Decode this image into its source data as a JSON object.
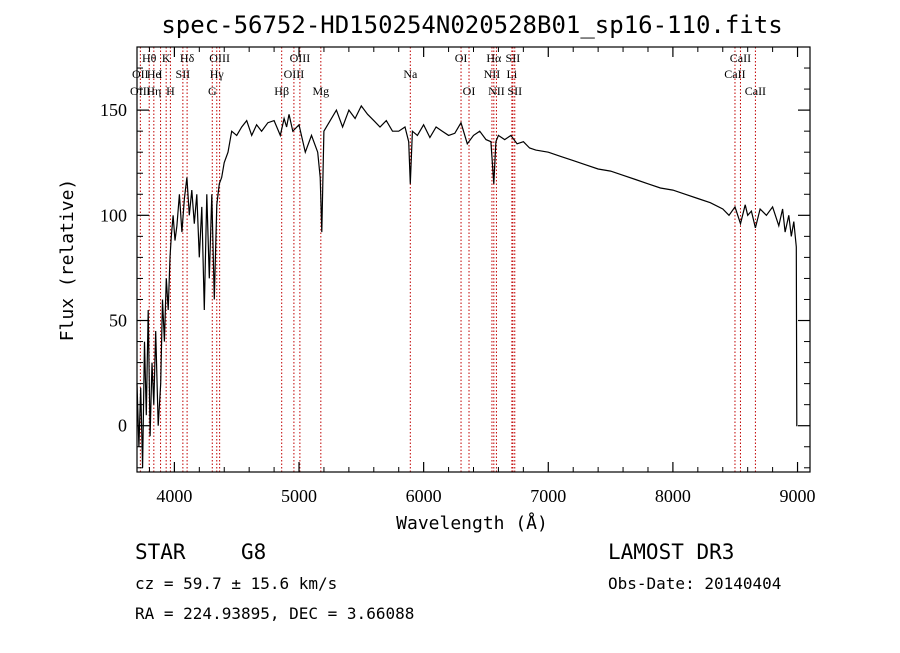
{
  "chart_data": {
    "type": "line",
    "title": "spec-56752-HD150254N020528B01_sp16-110.fits",
    "xlabel": "Wavelength (Å)",
    "ylabel": "Flux (relative)",
    "xlim": [
      3700,
      9100
    ],
    "ylim": [
      -22,
      180
    ],
    "x_ticks": [
      4000,
      5000,
      6000,
      7000,
      8000,
      9000
    ],
    "y_ticks": [
      0,
      50,
      100,
      150
    ],
    "series": [
      {
        "name": "flux",
        "x": [
          3700,
          3715,
          3730,
          3745,
          3760,
          3775,
          3790,
          3805,
          3820,
          3835,
          3850,
          3870,
          3890,
          3905,
          3920,
          3935,
          3950,
          3965,
          3975,
          3990,
          4005,
          4020,
          4040,
          4060,
          4080,
          4100,
          4120,
          4140,
          4160,
          4180,
          4200,
          4220,
          4240,
          4260,
          4280,
          4300,
          4320,
          4340,
          4360,
          4380,
          4400,
          4430,
          4460,
          4500,
          4540,
          4580,
          4620,
          4660,
          4700,
          4750,
          4800,
          4850,
          4880,
          4900,
          4920,
          4950,
          5000,
          5050,
          5100,
          5150,
          5170,
          5183,
          5200,
          5250,
          5300,
          5350,
          5400,
          5450,
          5500,
          5550,
          5600,
          5650,
          5700,
          5750,
          5800,
          5850,
          5880,
          5893,
          5910,
          5950,
          6000,
          6050,
          6100,
          6150,
          6200,
          6250,
          6300,
          6350,
          6400,
          6450,
          6500,
          6540,
          6563,
          6580,
          6600,
          6650,
          6700,
          6750,
          6800,
          6850,
          6900,
          7000,
          7100,
          7200,
          7300,
          7400,
          7500,
          7600,
          7700,
          7800,
          7900,
          8000,
          8100,
          8200,
          8300,
          8400,
          8450,
          8498,
          8542,
          8580,
          8600,
          8630,
          8662,
          8700,
          8750,
          8800,
          8850,
          8880,
          8900,
          8930,
          8950,
          8970,
          8990,
          8994,
          9000
        ],
        "values": [
          20,
          -10,
          18,
          -20,
          40,
          5,
          55,
          -5,
          30,
          10,
          45,
          0,
          20,
          60,
          40,
          70,
          55,
          80,
          90,
          100,
          88,
          95,
          110,
          92,
          108,
          118,
          100,
          112,
          96,
          110,
          80,
          104,
          55,
          110,
          70,
          110,
          60,
          105,
          115,
          118,
          125,
          130,
          140,
          138,
          142,
          145,
          138,
          143,
          140,
          144,
          145,
          138,
          146,
          142,
          148,
          140,
          143,
          130,
          138,
          130,
          118,
          92,
          140,
          145,
          150,
          142,
          150,
          146,
          152,
          148,
          145,
          142,
          145,
          140,
          140,
          142,
          135,
          115,
          140,
          138,
          143,
          137,
          142,
          140,
          138,
          139,
          144,
          134,
          138,
          140,
          136,
          135,
          115,
          135,
          138,
          136,
          138,
          134,
          135,
          132,
          131,
          130,
          128,
          126,
          124,
          122,
          121,
          119,
          117,
          115,
          113,
          112,
          110,
          108,
          106,
          103,
          100,
          104,
          96,
          105,
          100,
          102,
          94,
          103,
          100,
          104,
          95,
          103,
          92,
          100,
          90,
          97,
          85,
          0,
          0
        ]
      }
    ],
    "spectral_lines": [
      {
        "label": "Hθ",
        "wavelength": 3798,
        "row": 1
      },
      {
        "label": "OII",
        "wavelength": 3727,
        "row": 2
      },
      {
        "label": "OIII",
        "wavelength": 3727,
        "row": 3
      },
      {
        "label": "He",
        "wavelength": 3835,
        "row": 2
      },
      {
        "label": "Hη",
        "wavelength": 3835,
        "row": 3
      },
      {
        "label": "K",
        "wavelength": 3934,
        "row": 1
      },
      {
        "label": "H",
        "wavelength": 3968,
        "row": 3
      },
      {
        "label": "I",
        "wavelength": 3889,
        "row": 2
      },
      {
        "label": "SII",
        "wavelength": 4068,
        "row": 2
      },
      {
        "label": "Hδ",
        "wavelength": 4102,
        "row": 1
      },
      {
        "label": "OIII",
        "wavelength": 4363,
        "row": 1
      },
      {
        "label": "Hγ",
        "wavelength": 4340,
        "row": 2
      },
      {
        "label": "G",
        "wavelength": 4304,
        "row": 3
      },
      {
        "label": "Hβ",
        "wavelength": 4861,
        "row": 3
      },
      {
        "label": "OIII",
        "wavelength": 5007,
        "row": 1
      },
      {
        "label": "OIII",
        "wavelength": 4959,
        "row": 2
      },
      {
        "label": "Mg",
        "wavelength": 5175,
        "row": 3
      },
      {
        "label": "Na",
        "wavelength": 5893,
        "row": 2
      },
      {
        "label": "OI",
        "wavelength": 6300,
        "row": 1
      },
      {
        "label": "OI",
        "wavelength": 6364,
        "row": 3
      },
      {
        "label": "Hα",
        "wavelength": 6563,
        "row": 1
      },
      {
        "label": "NII",
        "wavelength": 6548,
        "row": 2
      },
      {
        "label": "NII",
        "wavelength": 6584,
        "row": 3
      },
      {
        "label": "SII",
        "wavelength": 6716,
        "row": 1
      },
      {
        "label": "Li",
        "wavelength": 6708,
        "row": 2
      },
      {
        "label": "SII",
        "wavelength": 6731,
        "row": 3
      },
      {
        "label": "CaII",
        "wavelength": 8542,
        "row": 1
      },
      {
        "label": "CaII",
        "wavelength": 8498,
        "row": 2
      },
      {
        "label": "CaII",
        "wavelength": 8662,
        "row": 3
      }
    ]
  },
  "info": {
    "object_class": "STAR",
    "subclass": "G8",
    "survey": "LAMOST DR3",
    "redshift": "cz = 59.7 ± 15.6 km/s",
    "obs_date": "Obs-Date: 20140404",
    "coords": "RA = 224.93895, DEC =   3.66088"
  },
  "colors": {
    "line_marker": "#c00000",
    "spectrum": "#000000",
    "axes": "#000000"
  }
}
